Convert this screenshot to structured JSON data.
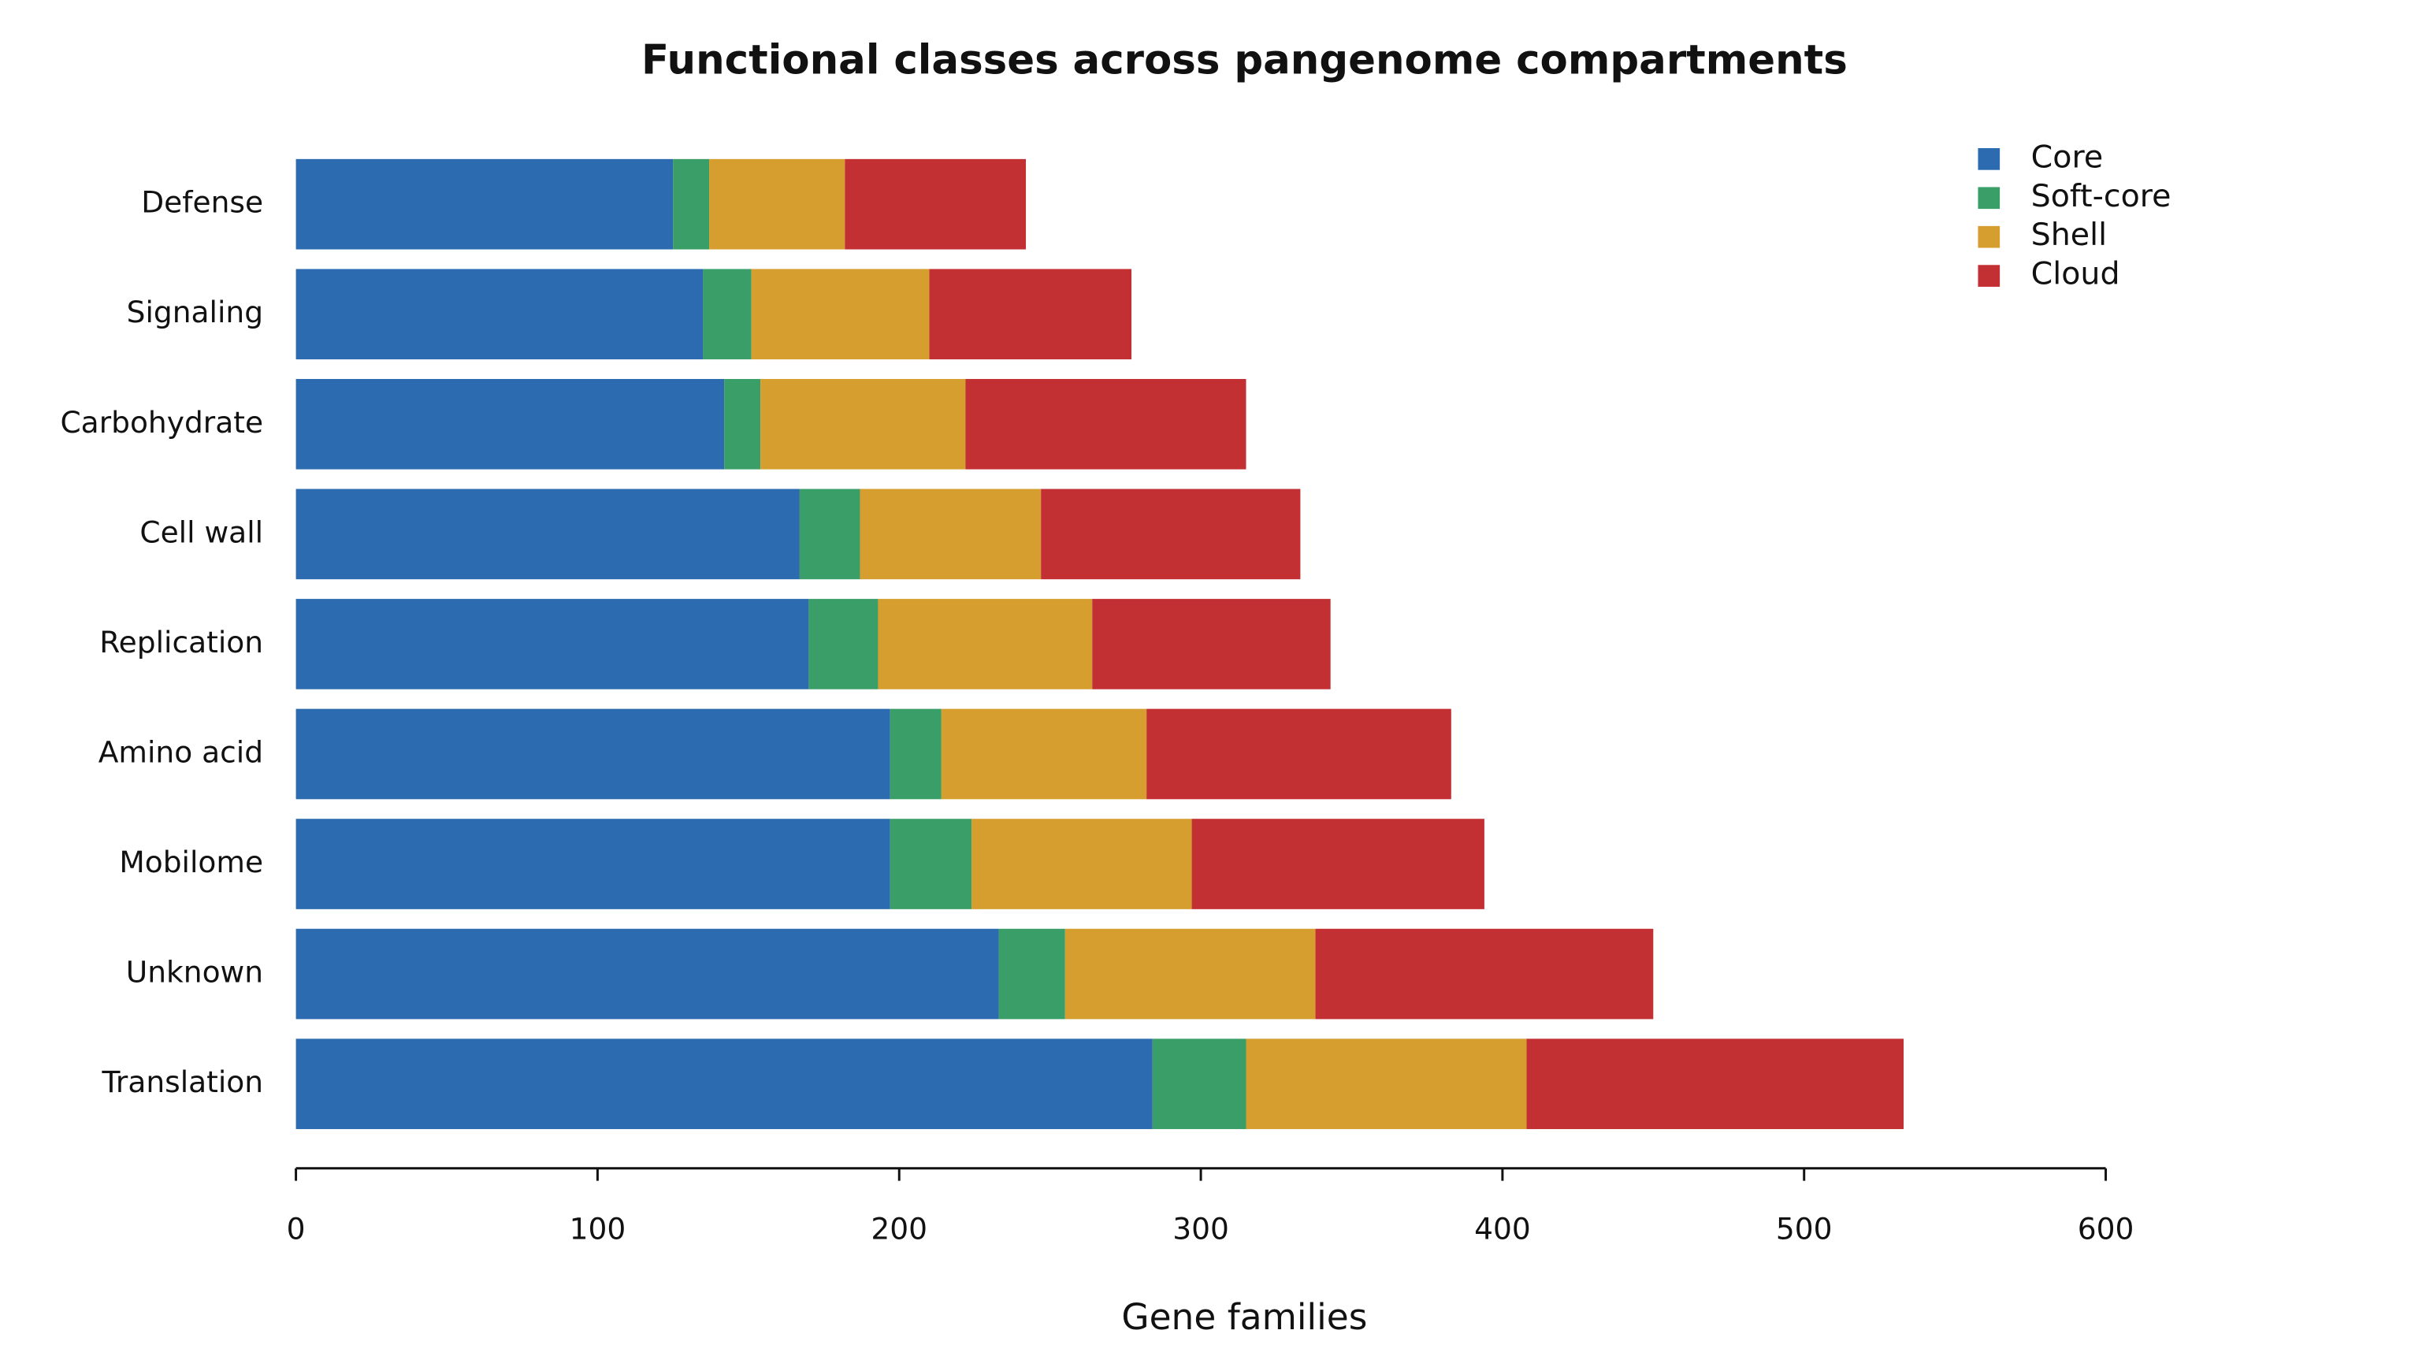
{
  "chart_data": {
    "type": "stacked-barh",
    "title": "Functional classes across pangenome compartments",
    "x_label": "Gene families",
    "categories": [
      "Defense",
      "Signaling",
      "Carbohydrate",
      "Cell wall",
      "Replication",
      "Amino acid",
      "Mobilome",
      "Unknown",
      "Translation"
    ],
    "series": [
      {
        "name": "Core",
        "color": "#2c6bb0",
        "values": [
          125,
          135,
          142,
          167,
          170,
          197,
          197,
          233,
          284
        ]
      },
      {
        "name": "Soft-core",
        "color": "#3a9e68",
        "values": [
          12,
          16,
          12,
          20,
          23,
          17,
          27,
          22,
          31
        ]
      },
      {
        "name": "Shell",
        "color": "#d59e2e",
        "values": [
          45,
          59,
          68,
          60,
          71,
          68,
          73,
          83,
          93
        ]
      },
      {
        "name": "Cloud",
        "color": "#c33033",
        "values": [
          60,
          67,
          93,
          86,
          79,
          101,
          97,
          112,
          125
        ]
      }
    ],
    "xlim": [
      0,
      600
    ],
    "xticks": [
      0,
      100,
      200,
      300,
      400,
      500,
      600
    ],
    "grid": false,
    "legend": "upper right"
  }
}
